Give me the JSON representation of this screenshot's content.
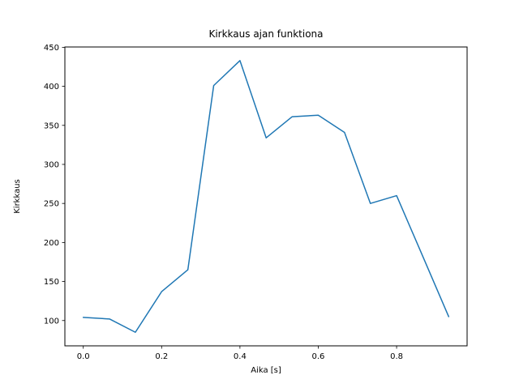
{
  "chart_data": {
    "type": "line",
    "title": "Kirkkaus ajan funktiona",
    "xlabel": "Aika [s]",
    "ylabel": "Kirkkaus",
    "x": [
      0.0,
      0.067,
      0.133,
      0.2,
      0.267,
      0.333,
      0.4,
      0.467,
      0.533,
      0.6,
      0.667,
      0.733,
      0.8,
      0.867,
      0.933
    ],
    "y": [
      104,
      102,
      85,
      137,
      165,
      401,
      433,
      334,
      361,
      363,
      341,
      250,
      260,
      182,
      105
    ],
    "xticks": [
      0.0,
      0.2,
      0.4,
      0.6,
      0.8
    ],
    "xtick_labels": [
      "0.0",
      "0.2",
      "0.4",
      "0.6",
      "0.8"
    ],
    "yticks": [
      100,
      150,
      200,
      250,
      300,
      350,
      400,
      450
    ],
    "ytick_labels": [
      "100",
      "150",
      "200",
      "250",
      "300",
      "350",
      "400",
      "450"
    ],
    "xlim": [
      -0.047,
      0.98
    ],
    "ylim": [
      67.6,
      450.4
    ],
    "line_color": "#1f77b4",
    "axis_color": "#000000",
    "background": "#ffffff",
    "grid": false,
    "legend": null
  }
}
